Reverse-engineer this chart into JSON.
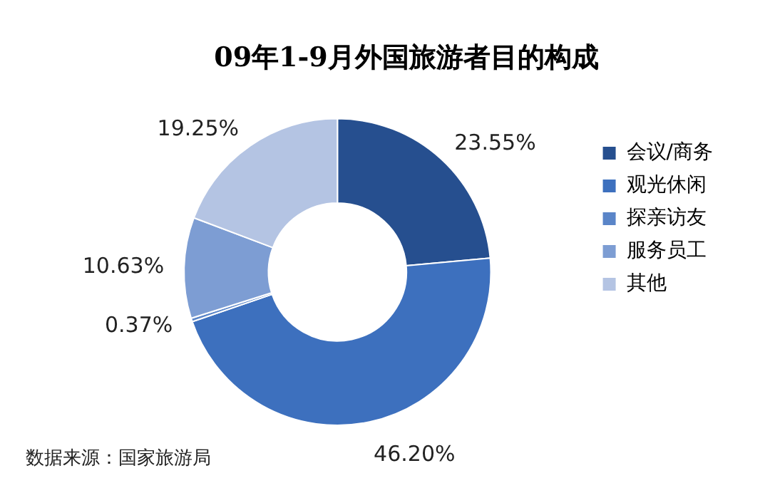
{
  "chart_data": {
    "type": "donut",
    "title": "09年1-9月外国旅游者目的构成",
    "categories": [
      "会议/商务",
      "观光休闲",
      "探亲访友",
      "服务员工",
      "其他"
    ],
    "values": [
      23.55,
      46.2,
      0.37,
      10.63,
      19.25
    ],
    "colors": [
      "#264f8f",
      "#3d70be",
      "#5a85c8",
      "#7d9dd3",
      "#b4c4e3"
    ],
    "value_labels": [
      "23.55%",
      "46.20%",
      "0.37%",
      "10.63%",
      "19.25%"
    ],
    "legend": "right",
    "annotations": [
      "数据来源：国家旅游局"
    ]
  }
}
